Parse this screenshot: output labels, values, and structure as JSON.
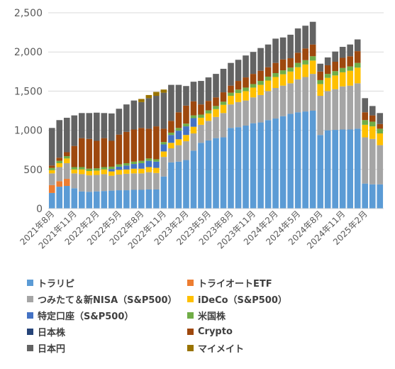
{
  "chart_data": {
    "type": "bar",
    "stacked": true,
    "title": "",
    "xlabel": "",
    "ylabel": "",
    "ylim": [
      0,
      2500
    ],
    "yticks": [
      "0",
      "500",
      "1,000",
      "1,500",
      "2,000",
      "2,500"
    ],
    "grid": true,
    "legend_position": "bottom",
    "categories": [
      "2021年8月",
      "2021年9月",
      "2021年10月",
      "2021年11月",
      "2021年12月",
      "2022年1月",
      "2022年2月",
      "2022年3月",
      "2022年4月",
      "2022年5月",
      "2022年6月",
      "2022年7月",
      "2022年8月",
      "2022年9月",
      "2022年10月",
      "2022年11月",
      "2022年12月",
      "2023年1月",
      "2023年2月",
      "2023年3月",
      "2023年4月",
      "2023年5月",
      "2023年6月",
      "2023年7月",
      "2023年8月",
      "2023年9月",
      "2023年10月",
      "2023年11月",
      "2023年12月",
      "2024年1月",
      "2024年2月",
      "2024年3月",
      "2024年4月",
      "2024年5月",
      "2024年6月",
      "2024年7月",
      "2024年8月",
      "2024年9月",
      "2024年10月",
      "2024年11月",
      "2024年12月",
      "2025年1月",
      "2025年2月",
      "2025年3月",
      "2025年4月"
    ],
    "xtick_labels": [
      "2021年8月",
      "2021年11月",
      "2022年2月",
      "2022年5月",
      "2022年8月",
      "2022年11月",
      "2023年2月",
      "2023年5月",
      "2023年8月",
      "2023年11月",
      "2024年2月",
      "2024年5月",
      "2024年8月",
      "2024年11月",
      "2025年2月"
    ],
    "series": [
      {
        "name": "トラリピ",
        "color": "#5b9bd5",
        "values": [
          200,
          280,
          290,
          260,
          220,
          215,
          220,
          225,
          230,
          235,
          235,
          240,
          240,
          245,
          245,
          410,
          590,
          600,
          620,
          740,
          840,
          870,
          900,
          910,
          1030,
          1040,
          1060,
          1090,
          1100,
          1130,
          1150,
          1180,
          1210,
          1230,
          1240,
          1250,
          940,
          1000,
          1005,
          1010,
          1010,
          1020,
          320,
          310,
          310
        ]
      },
      {
        "name": "トライオートETF",
        "color": "#ed7d31",
        "values": [
          100,
          70,
          90,
          0,
          0,
          0,
          0,
          0,
          0,
          0,
          0,
          0,
          0,
          0,
          0,
          0,
          0,
          0,
          0,
          0,
          0,
          0,
          0,
          0,
          0,
          0,
          0,
          0,
          0,
          0,
          0,
          0,
          0,
          0,
          0,
          0,
          0,
          0,
          0,
          0,
          0,
          0,
          0,
          0,
          0
        ]
      },
      {
        "name": "つみたて＆新NISA（S&P500）",
        "color": "#a5a5a5",
        "values": [
          150,
          180,
          200,
          190,
          220,
          210,
          210,
          215,
          190,
          200,
          210,
          210,
          210,
          220,
          210,
          250,
          180,
          210,
          240,
          220,
          230,
          250,
          270,
          310,
          300,
          320,
          320,
          330,
          350,
          370,
          390,
          390,
          390,
          420,
          440,
          470,
          500,
          500,
          520,
          550,
          560,
          580,
          590,
          580,
          500
        ]
      },
      {
        "name": "iDeCo（S&P500）",
        "color": "#ffc000",
        "values": [
          40,
          50,
          60,
          50,
          60,
          55,
          55,
          60,
          55,
          60,
          55,
          60,
          60,
          65,
          65,
          70,
          70,
          75,
          80,
          85,
          90,
          95,
          100,
          105,
          110,
          115,
          120,
          125,
          130,
          135,
          140,
          145,
          150,
          155,
          160,
          170,
          150,
          170,
          175,
          180,
          190,
          200,
          160,
          160,
          150
        ]
      },
      {
        "name": "特定口座（S&P500）",
        "color": "#4472c4",
        "values": [
          0,
          0,
          0,
          0,
          0,
          0,
          0,
          0,
          30,
          40,
          50,
          60,
          70,
          80,
          80,
          90,
          100,
          110,
          110,
          110,
          0,
          0,
          0,
          0,
          0,
          0,
          0,
          0,
          0,
          0,
          0,
          0,
          0,
          0,
          0,
          0,
          0,
          0,
          0,
          0,
          0,
          0,
          0,
          0,
          0
        ]
      },
      {
        "name": "米国株",
        "color": "#70ad47",
        "values": [
          30,
          30,
          30,
          30,
          30,
          30,
          30,
          30,
          30,
          30,
          30,
          30,
          30,
          30,
          30,
          30,
          30,
          35,
          35,
          35,
          40,
          40,
          40,
          40,
          40,
          45,
          45,
          45,
          50,
          50,
          50,
          50,
          50,
          55,
          55,
          55,
          50,
          50,
          55,
          55,
          55,
          60,
          60,
          60,
          60
        ]
      },
      {
        "name": "日本株",
        "color": "#264478",
        "values": [
          0,
          0,
          0,
          0,
          0,
          0,
          0,
          0,
          0,
          0,
          0,
          0,
          0,
          0,
          0,
          0,
          0,
          0,
          0,
          0,
          0,
          0,
          0,
          0,
          0,
          0,
          0,
          0,
          0,
          0,
          0,
          0,
          0,
          0,
          0,
          0,
          0,
          0,
          0,
          0,
          0,
          0,
          0,
          0,
          0
        ]
      },
      {
        "name": "Crypto",
        "color": "#9e480e",
        "values": [
          30,
          40,
          50,
          270,
          370,
          380,
          350,
          370,
          330,
          380,
          400,
          410,
          420,
          380,
          420,
          170,
          150,
          200,
          230,
          180,
          130,
          120,
          110,
          120,
          90,
          110,
          130,
          130,
          130,
          120,
          130,
          140,
          120,
          130,
          150,
          150,
          110,
          110,
          120,
          130,
          130,
          150,
          100,
          80,
          60
        ]
      },
      {
        "name": "日本円",
        "color": "#636363",
        "values": [
          480,
          480,
          440,
          390,
          320,
          330,
          360,
          320,
          350,
          330,
          350,
          370,
          330,
          390,
          390,
          460,
          460,
          350,
          250,
          250,
          300,
          300,
          300,
          300,
          290,
          270,
          280,
          280,
          290,
          290,
          310,
          280,
          300,
          310,
          290,
          290,
          100,
          100,
          130,
          140,
          150,
          150,
          180,
          120,
          140
        ]
      },
      {
        "name": "マイメイト",
        "color": "#997300",
        "values": [
          0,
          0,
          0,
          0,
          0,
          0,
          0,
          0,
          0,
          0,
          0,
          0,
          40,
          40,
          50,
          40,
          0,
          0,
          0,
          0,
          0,
          0,
          0,
          0,
          0,
          0,
          0,
          0,
          0,
          0,
          0,
          0,
          0,
          0,
          0,
          0,
          0,
          0,
          0,
          0,
          0,
          0,
          0,
          0,
          0
        ]
      }
    ]
  }
}
